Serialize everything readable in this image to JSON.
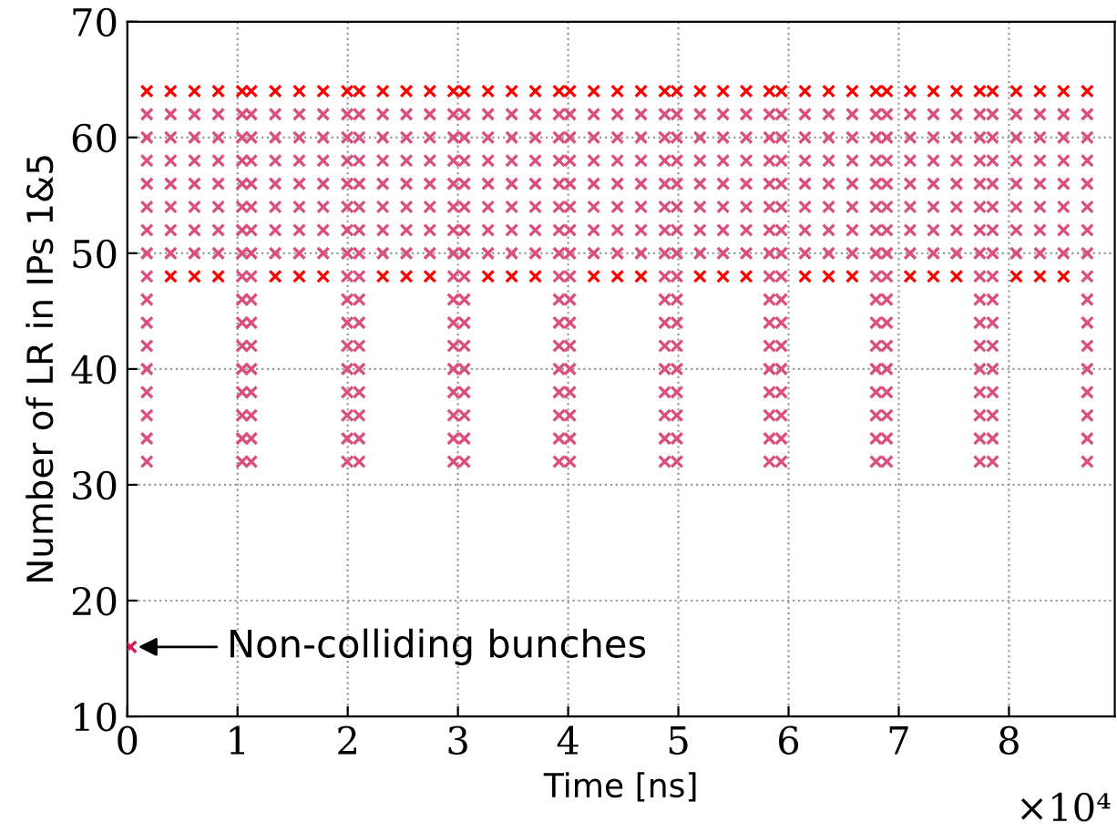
{
  "chart_data": {
    "type": "scatter",
    "xlabel": "Time [ns]",
    "ylabel": "Number of LR in IPs 1&5",
    "xlim": [
      0,
      8.96
    ],
    "ylim": [
      10,
      70
    ],
    "xticks": [
      0,
      1,
      2,
      3,
      4,
      5,
      6,
      7,
      8
    ],
    "yticks": [
      10,
      20,
      30,
      40,
      50,
      60,
      70
    ],
    "grid": true,
    "marker": "cross",
    "x": [
      0.177,
      0.393,
      0.609,
      0.825,
      1.041,
      1.124,
      1.342,
      1.56,
      1.777,
      1.995,
      2.104,
      2.318,
      2.532,
      2.745,
      2.959,
      3.058,
      3.273,
      3.488,
      3.702,
      3.917,
      4.017,
      4.232,
      4.447,
      4.661,
      4.876,
      4.986,
      5.196,
      5.406,
      5.616,
      5.826,
      5.934,
      6.149,
      6.364,
      6.578,
      6.793,
      6.892,
      7.103,
      7.314,
      7.524,
      7.735,
      7.851,
      8.066,
      8.281,
      8.495,
      8.71
    ],
    "series": [
      {
        "color": "#ff0000",
        "values": [
          64,
          64,
          64,
          64,
          64,
          64,
          64,
          64,
          64,
          64,
          64,
          64,
          64,
          64,
          64,
          64,
          64,
          64,
          64,
          64,
          64,
          64,
          64,
          64,
          64,
          64,
          64,
          64,
          64,
          64,
          64,
          64,
          64,
          64,
          64,
          64,
          64,
          64,
          64,
          64,
          64,
          64,
          64,
          64,
          64
        ]
      },
      {
        "color": "#d9507f",
        "values": [
          62,
          62,
          62,
          62,
          62,
          62,
          62,
          62,
          62,
          62,
          62,
          62,
          62,
          62,
          62,
          62,
          62,
          62,
          62,
          62,
          62,
          62,
          62,
          62,
          62,
          62,
          62,
          62,
          62,
          62,
          62,
          62,
          62,
          62,
          62,
          62,
          62,
          62,
          62,
          62,
          62,
          62,
          62,
          62,
          62
        ]
      },
      {
        "color": "#d9507f",
        "values": [
          60,
          60,
          60,
          60,
          60,
          60,
          60,
          60,
          60,
          60,
          60,
          60,
          60,
          60,
          60,
          60,
          60,
          60,
          60,
          60,
          60,
          60,
          60,
          60,
          60,
          60,
          60,
          60,
          60,
          60,
          60,
          60,
          60,
          60,
          60,
          60,
          60,
          60,
          60,
          60,
          60,
          60,
          60,
          60,
          60
        ]
      },
      {
        "color": "#d9507f",
        "values": [
          58,
          58,
          58,
          58,
          58,
          58,
          58,
          58,
          58,
          58,
          58,
          58,
          58,
          58,
          58,
          58,
          58,
          58,
          58,
          58,
          58,
          58,
          58,
          58,
          58,
          58,
          58,
          58,
          58,
          58,
          58,
          58,
          58,
          58,
          58,
          58,
          58,
          58,
          58,
          58,
          58,
          58,
          58,
          58,
          58
        ]
      },
      {
        "color": "#d9507f",
        "values": [
          56,
          56,
          56,
          56,
          56,
          56,
          56,
          56,
          56,
          56,
          56,
          56,
          56,
          56,
          56,
          56,
          56,
          56,
          56,
          56,
          56,
          56,
          56,
          56,
          56,
          56,
          56,
          56,
          56,
          56,
          56,
          56,
          56,
          56,
          56,
          56,
          56,
          56,
          56,
          56,
          56,
          56,
          56,
          56,
          56
        ]
      },
      {
        "color": "#d9507f",
        "values": [
          54,
          54,
          54,
          54,
          54,
          54,
          54,
          54,
          54,
          54,
          54,
          54,
          54,
          54,
          54,
          54,
          54,
          54,
          54,
          54,
          54,
          54,
          54,
          54,
          54,
          54,
          54,
          54,
          54,
          54,
          54,
          54,
          54,
          54,
          54,
          54,
          54,
          54,
          54,
          54,
          54,
          54,
          54,
          54,
          54
        ]
      },
      {
        "color": "#d9507f",
        "values": [
          52,
          52,
          52,
          52,
          52,
          52,
          52,
          52,
          52,
          52,
          52,
          52,
          52,
          52,
          52,
          52,
          52,
          52,
          52,
          52,
          52,
          52,
          52,
          52,
          52,
          52,
          52,
          52,
          52,
          52,
          52,
          52,
          52,
          52,
          52,
          52,
          52,
          52,
          52,
          52,
          52,
          52,
          52,
          52,
          52
        ]
      },
      {
        "color": "#d9507f",
        "values": [
          50,
          50,
          50,
          50,
          50,
          50,
          50,
          50,
          50,
          50,
          50,
          50,
          50,
          50,
          50,
          50,
          50,
          50,
          50,
          50,
          50,
          50,
          50,
          50,
          50,
          50,
          50,
          50,
          50,
          50,
          50,
          50,
          50,
          50,
          50,
          50,
          50,
          50,
          50,
          50,
          50,
          50,
          50,
          50,
          50
        ]
      },
      {
        "color": "#ff0000",
        "x": [
          0.393,
          0.609,
          0.825,
          1.342,
          1.56,
          1.777,
          2.318,
          2.532,
          2.745,
          3.273,
          3.488,
          3.702,
          4.232,
          4.447,
          4.661,
          5.196,
          5.406,
          5.616,
          6.149,
          6.364,
          6.578,
          7.103,
          7.314,
          7.524,
          8.066,
          8.281,
          8.495
        ],
        "values": [
          48,
          48,
          48,
          48,
          48,
          48,
          48,
          48,
          48,
          48,
          48,
          48,
          48,
          48,
          48,
          48,
          48,
          48,
          48,
          48,
          48,
          48,
          48,
          48,
          48,
          48,
          48
        ]
      },
      {
        "color": "#d9507f",
        "x": [
          0.177,
          1.041,
          1.124,
          1.995,
          2.104,
          2.959,
          3.058,
          3.917,
          4.017,
          4.876,
          4.986,
          5.826,
          5.934,
          6.793,
          6.892,
          7.735,
          7.851,
          8.71
        ],
        "values": [
          48,
          48,
          48,
          48,
          48,
          48,
          48,
          48,
          48,
          48,
          48,
          48,
          48,
          48,
          48,
          48,
          48,
          48
        ]
      },
      {
        "color": "#d9507f",
        "x": [
          0.177,
          1.041,
          1.124,
          1.995,
          2.104,
          2.959,
          3.058,
          3.917,
          4.017,
          4.876,
          4.986,
          5.826,
          5.934,
          6.793,
          6.892,
          7.735,
          7.851,
          8.71
        ],
        "values": [
          46,
          46,
          46,
          46,
          46,
          46,
          46,
          46,
          46,
          46,
          46,
          46,
          46,
          46,
          46,
          46,
          46,
          46
        ]
      },
      {
        "color": "#d9507f",
        "x": [
          0.177,
          1.041,
          1.124,
          1.995,
          2.104,
          2.959,
          3.058,
          3.917,
          4.017,
          4.876,
          4.986,
          5.826,
          5.934,
          6.793,
          6.892,
          7.735,
          7.851,
          8.71
        ],
        "values": [
          44,
          44,
          44,
          44,
          44,
          44,
          44,
          44,
          44,
          44,
          44,
          44,
          44,
          44,
          44,
          44,
          44,
          44
        ]
      },
      {
        "color": "#d9507f",
        "x": [
          0.177,
          1.041,
          1.124,
          1.995,
          2.104,
          2.959,
          3.058,
          3.917,
          4.017,
          4.876,
          4.986,
          5.826,
          5.934,
          6.793,
          6.892,
          7.735,
          7.851,
          8.71
        ],
        "values": [
          42,
          42,
          42,
          42,
          42,
          42,
          42,
          42,
          42,
          42,
          42,
          42,
          42,
          42,
          42,
          42,
          42,
          42
        ]
      },
      {
        "color": "#d9507f",
        "x": [
          0.177,
          1.041,
          1.124,
          1.995,
          2.104,
          2.959,
          3.058,
          3.917,
          4.017,
          4.876,
          4.986,
          5.826,
          5.934,
          6.793,
          6.892,
          7.735,
          7.851,
          8.71
        ],
        "values": [
          40,
          40,
          40,
          40,
          40,
          40,
          40,
          40,
          40,
          40,
          40,
          40,
          40,
          40,
          40,
          40,
          40,
          40
        ]
      },
      {
        "color": "#d9507f",
        "x": [
          0.177,
          1.041,
          1.124,
          1.995,
          2.104,
          2.959,
          3.058,
          3.917,
          4.017,
          4.876,
          4.986,
          5.826,
          5.934,
          6.793,
          6.892,
          7.735,
          7.851,
          8.71
        ],
        "values": [
          38,
          38,
          38,
          38,
          38,
          38,
          38,
          38,
          38,
          38,
          38,
          38,
          38,
          38,
          38,
          38,
          38,
          38
        ]
      },
      {
        "color": "#d9507f",
        "x": [
          0.177,
          1.041,
          1.124,
          1.995,
          2.104,
          2.959,
          3.058,
          3.917,
          4.017,
          4.876,
          4.986,
          5.826,
          5.934,
          6.793,
          6.892,
          7.735,
          7.851,
          8.71
        ],
        "values": [
          36,
          36,
          36,
          36,
          36,
          36,
          36,
          36,
          36,
          36,
          36,
          36,
          36,
          36,
          36,
          36,
          36,
          36
        ]
      },
      {
        "color": "#d9507f",
        "x": [
          0.177,
          1.041,
          1.124,
          1.995,
          2.104,
          2.959,
          3.058,
          3.917,
          4.017,
          4.876,
          4.986,
          5.826,
          5.934,
          6.793,
          6.892,
          7.735,
          7.851,
          8.71
        ],
        "values": [
          34,
          34,
          34,
          34,
          34,
          34,
          34,
          34,
          34,
          34,
          34,
          34,
          34,
          34,
          34,
          34,
          34,
          34
        ]
      },
      {
        "color": "#d9507f",
        "x": [
          0.177,
          1.041,
          1.124,
          1.995,
          2.104,
          2.959,
          3.058,
          3.917,
          4.017,
          4.876,
          4.986,
          5.826,
          5.934,
          6.793,
          6.892,
          7.735,
          7.851,
          8.71
        ],
        "values": [
          32,
          32,
          32,
          32,
          32,
          32,
          32,
          32,
          32,
          32,
          32,
          32,
          32,
          32,
          32,
          32,
          32,
          32
        ]
      },
      {
        "color": "#cc2255",
        "x": [
          0.03
        ],
        "values": [
          16
        ]
      }
    ],
    "annotations": [
      {
        "text": "Non-colliding bunches",
        "x": 0.03,
        "y": 16
      },
      "×10⁴"
    ]
  }
}
